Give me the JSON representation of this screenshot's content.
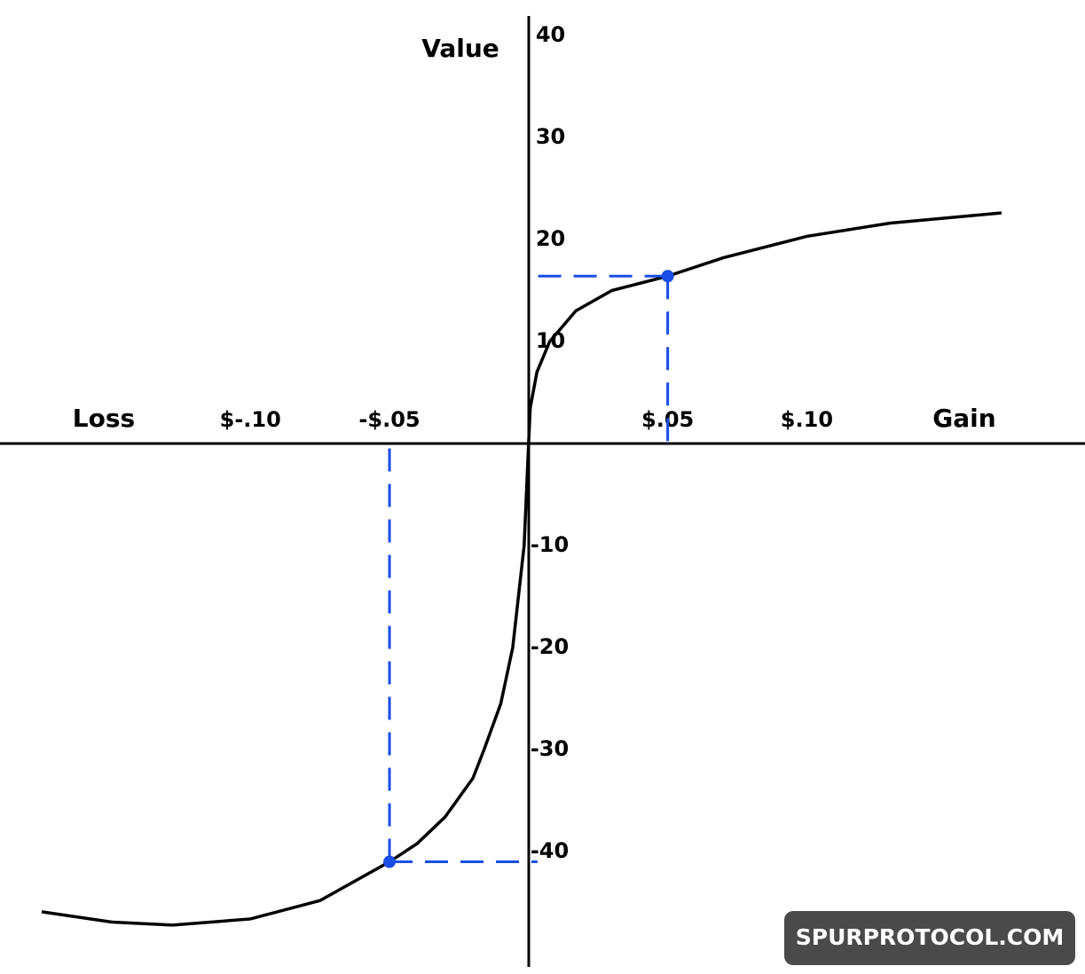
{
  "chart_data": {
    "type": "line",
    "y_label": "Value",
    "x_label_left": "Loss",
    "x_label_right": "Gain",
    "x": [
      -0.175,
      -0.15,
      -0.128,
      -0.1,
      -0.075,
      -0.05,
      -0.04,
      -0.03,
      -0.02,
      -0.016,
      -0.01,
      -0.0057,
      -0.0016,
      0,
      0.0006,
      0.003,
      0.0076,
      0.017,
      0.03,
      0.05,
      0.07,
      0.1,
      0.13,
      0.17
    ],
    "values": [
      -45.9,
      -46.9,
      -47.2,
      -46.6,
      -44.8,
      -41,
      -39.2,
      -36.6,
      -32.8,
      -30,
      -25.5,
      -20,
      -10,
      0,
      3.5,
      7,
      10,
      13,
      15,
      16.4,
      18.2,
      20.3,
      21.6,
      22.6
    ],
    "color": "#000000",
    "points": {
      "x": [
        0.05,
        -0.05
      ],
      "values": [
        16.4,
        -41
      ],
      "color": "#1a4de6"
    },
    "xlim": [
      -0.19,
      0.2
    ],
    "ylim": [
      -51.3,
      41.9
    ],
    "xticks": [
      {
        "value": -0.1,
        "label": "$-.10"
      },
      {
        "value": -0.05,
        "label": "-$.05"
      },
      {
        "value": 0.05,
        "label": "$.05"
      },
      {
        "value": 0.1,
        "label": "$.10"
      }
    ],
    "yticks": [
      40,
      30,
      20,
      10,
      -10,
      -20,
      -30,
      -40
    ],
    "grid": false,
    "watermark": "SPURPROTOCOL.COM"
  }
}
